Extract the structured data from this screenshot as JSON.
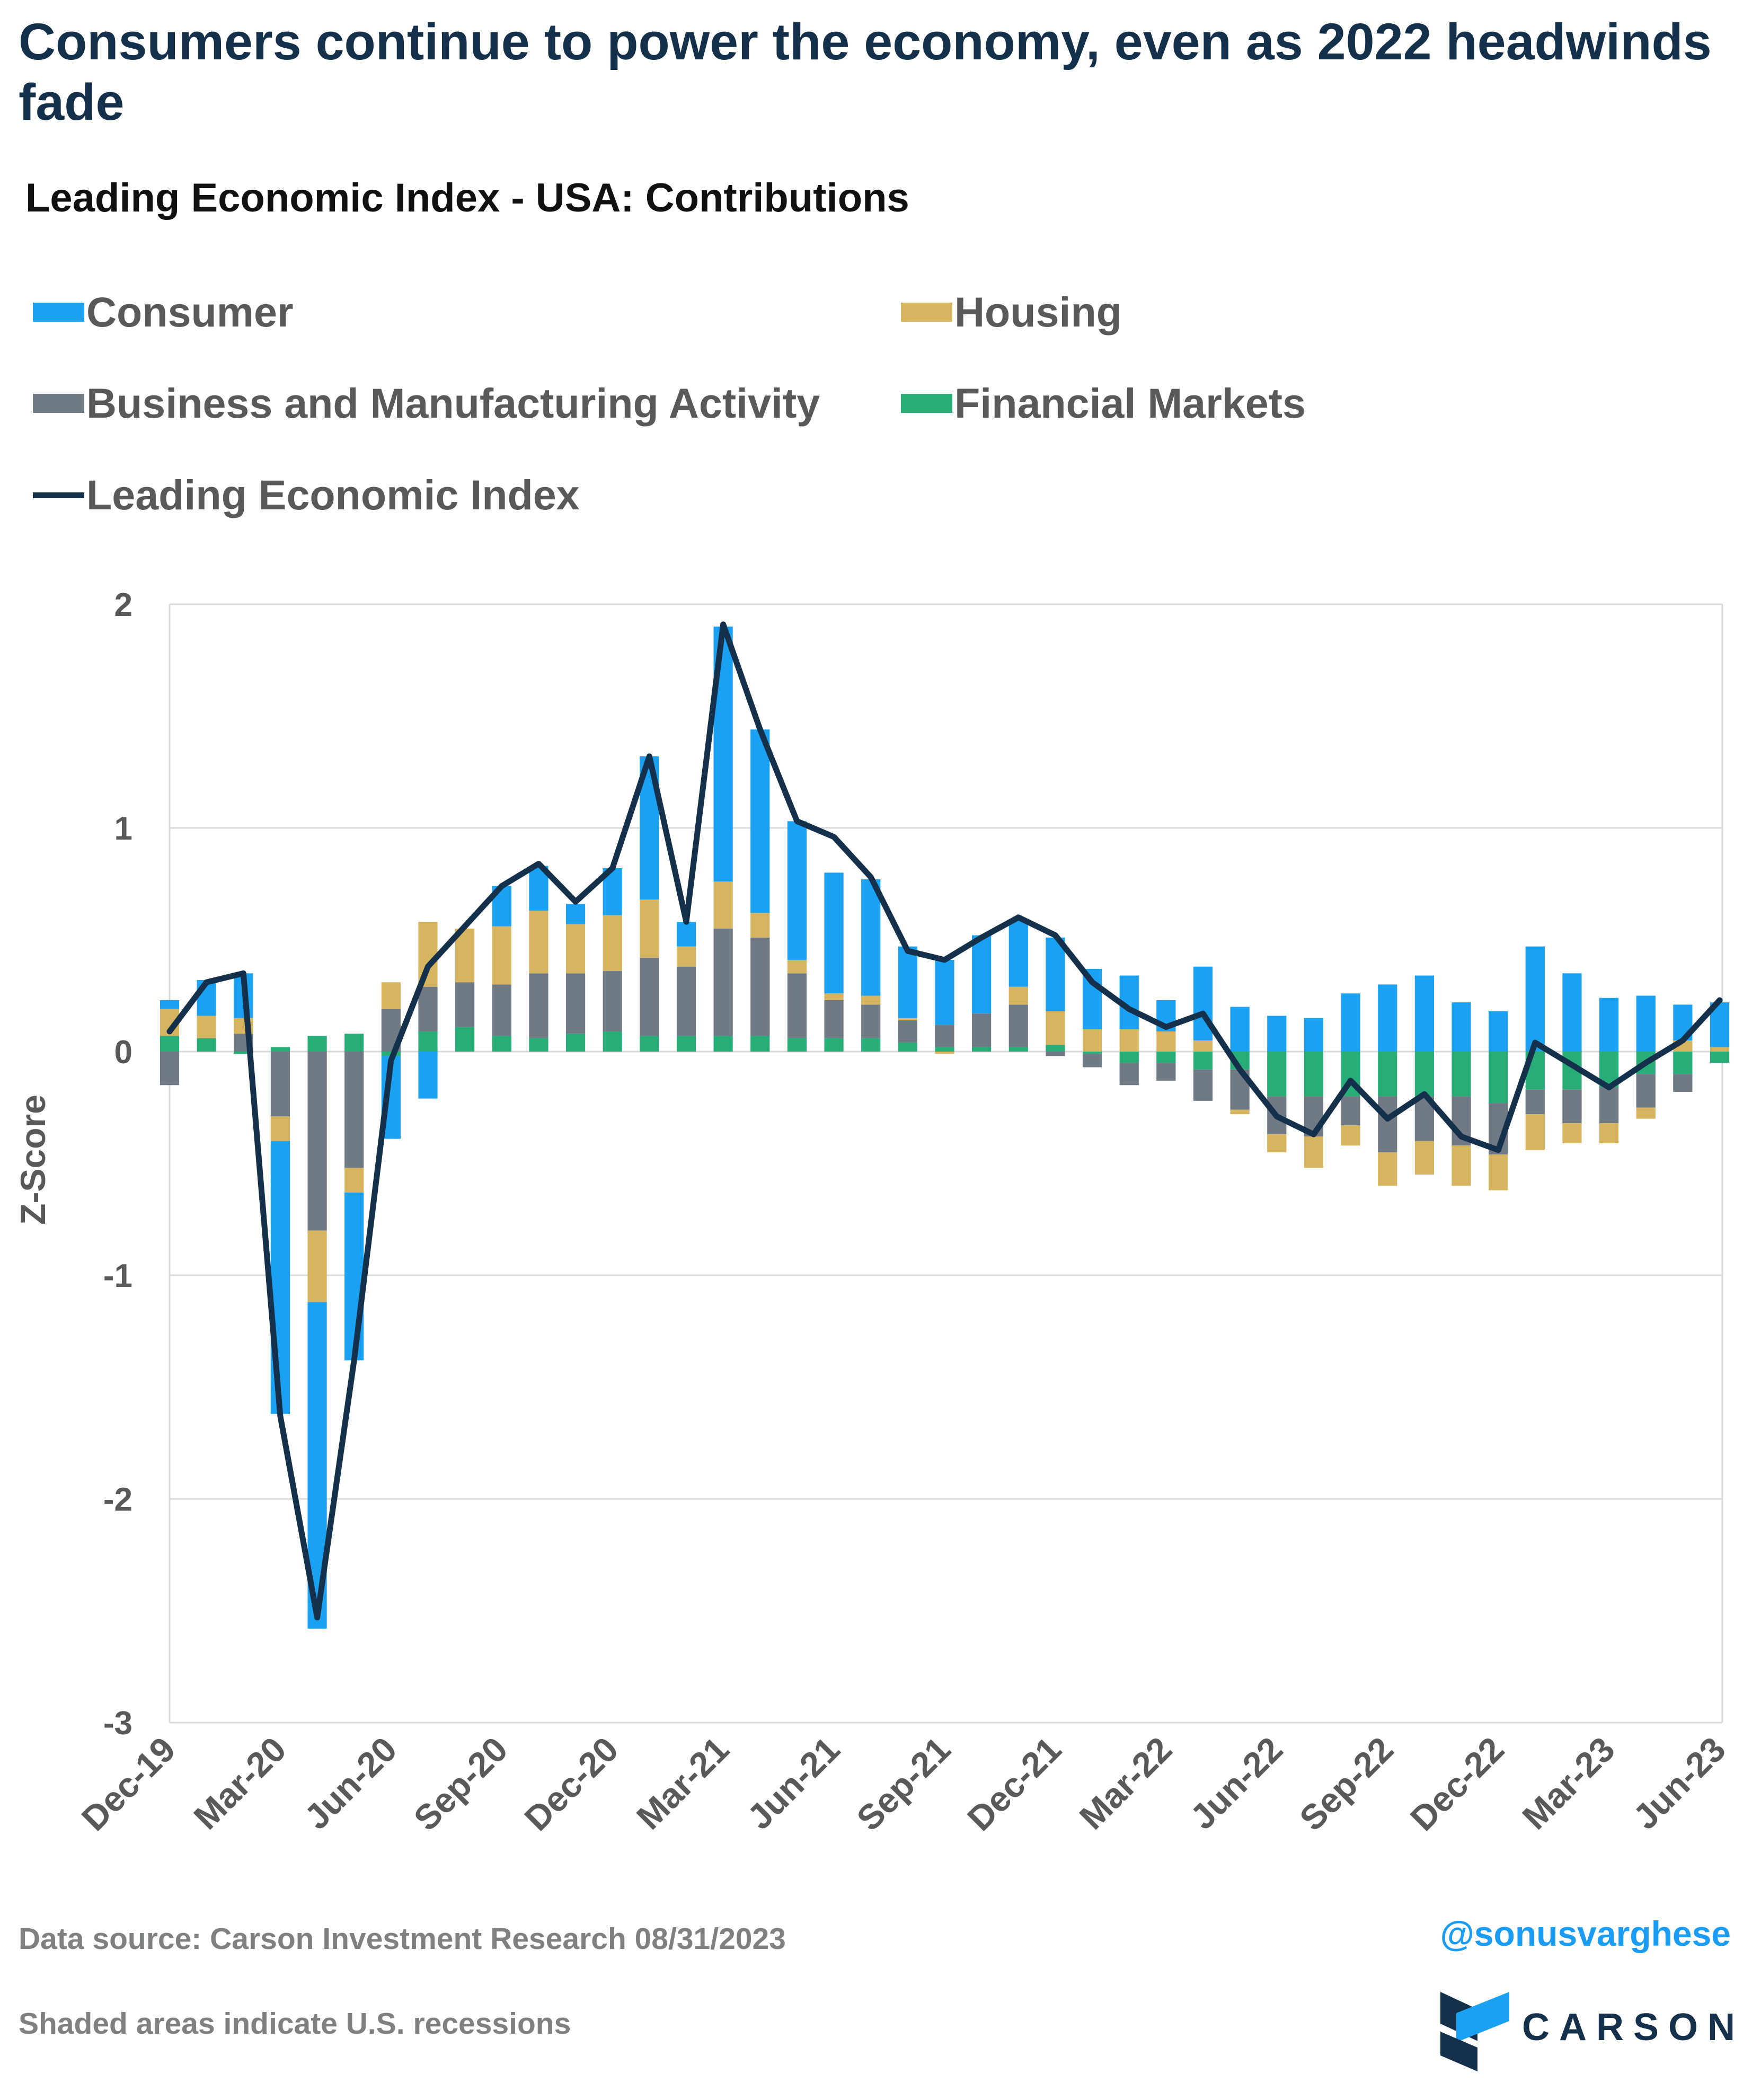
{
  "header": {
    "title": "Consumers continue to power the economy, even as 2022 headwinds fade",
    "subtitle": "Leading Economic Index - USA: Contributions"
  },
  "legend": {
    "consumer": "Consumer",
    "housing": "Housing",
    "business": "Business and Manufacturing Activity",
    "financial": "Financial Markets",
    "lei": "Leading Economic Index"
  },
  "colors": {
    "consumer": "#1ba1f2",
    "housing": "#d7b45f",
    "business": "#6f7a84",
    "financial": "#29ad78",
    "lei": "#14304a",
    "grid": "#d9d9d9",
    "axis_text": "#595959"
  },
  "footer": {
    "source": "Data source: Carson Investment Research   08/31/2023",
    "note": "Shaded areas indicate U.S. recessions",
    "handle": "@sonusvarghese",
    "logo": "CARSON"
  },
  "chart_data": {
    "type": "bar",
    "stacked": true,
    "ylabel": "Z-Score",
    "ylim": [
      -3,
      2
    ],
    "yticks": [
      "2",
      "1",
      "0",
      "-1",
      "-2",
      "-3"
    ],
    "xtick_labels": [
      "Dec-19",
      "Mar-20",
      "Jun-20",
      "Sep-20",
      "Dec-20",
      "Mar-21",
      "Jun-21",
      "Sep-21",
      "Dec-21",
      "Mar-22",
      "Jun-22",
      "Sep-22",
      "Dec-22",
      "Mar-23",
      "Jun-23"
    ],
    "categories": [
      "Dec-19",
      "Jan-20",
      "Feb-20",
      "Mar-20",
      "Apr-20",
      "May-20",
      "Jun-20",
      "Jul-20",
      "Aug-20",
      "Sep-20",
      "Oct-20",
      "Nov-20",
      "Dec-20",
      "Jan-21",
      "Feb-21",
      "Mar-21",
      "Apr-21",
      "May-21",
      "Jun-21",
      "Jul-21",
      "Aug-21",
      "Sep-21",
      "Oct-21",
      "Nov-21",
      "Dec-21",
      "Jan-22",
      "Feb-22",
      "Mar-22",
      "Apr-22",
      "May-22",
      "Jun-22",
      "Jul-22",
      "Aug-22",
      "Sep-22",
      "Oct-22",
      "Nov-22",
      "Dec-22",
      "Jan-23",
      "Feb-23",
      "Mar-23",
      "Apr-23",
      "May-23",
      "Jun-23"
    ],
    "grid": true,
    "series": [
      {
        "name": "Financial Markets",
        "key": "financial",
        "values": [
          0.07,
          0.06,
          -0.01,
          0.02,
          0.07,
          0.08,
          -0.02,
          0.09,
          0.11,
          0.07,
          0.06,
          0.08,
          0.09,
          0.07,
          0.07,
          0.07,
          0.07,
          0.06,
          0.06,
          0.06,
          0.04,
          0.02,
          0.02,
          0.02,
          0.03,
          -0.01,
          -0.05,
          -0.05,
          -0.08,
          -0.08,
          -0.2,
          -0.2,
          -0.2,
          -0.2,
          -0.2,
          -0.2,
          -0.23,
          -0.17,
          -0.17,
          -0.16,
          -0.1,
          -0.1,
          -0.05
        ]
      },
      {
        "name": "Business and Manufacturing Activity",
        "key": "business",
        "values": [
          -0.15,
          0,
          0.08,
          -0.29,
          -0.8,
          -0.52,
          0.19,
          0.2,
          0.2,
          0.23,
          0.29,
          0.27,
          0.27,
          0.35,
          0.31,
          0.48,
          0.44,
          0.29,
          0.17,
          0.15,
          0.1,
          0.1,
          0.15,
          0.19,
          -0.02,
          -0.06,
          -0.1,
          -0.08,
          -0.14,
          -0.18,
          -0.17,
          -0.18,
          -0.13,
          -0.25,
          -0.2,
          -0.22,
          -0.23,
          -0.11,
          -0.15,
          -0.16,
          -0.15,
          -0.08,
          0
        ]
      },
      {
        "name": "Housing",
        "key": "housing",
        "values": [
          0.12,
          0.1,
          0.07,
          -0.11,
          -0.32,
          -0.11,
          0.12,
          0.29,
          0.24,
          0.26,
          0.28,
          0.22,
          0.25,
          0.26,
          0.09,
          0.21,
          0.11,
          0.06,
          0.03,
          0.04,
          0.01,
          -0.01,
          0,
          0.08,
          0.15,
          0.1,
          0.1,
          0.09,
          0.05,
          -0.02,
          -0.08,
          -0.14,
          -0.09,
          -0.15,
          -0.15,
          -0.18,
          -0.16,
          -0.16,
          -0.09,
          -0.09,
          -0.05,
          0.05,
          0.02
        ]
      },
      {
        "name": "Consumer",
        "key": "consumer",
        "values": [
          0.04,
          0.16,
          0.2,
          -1.22,
          -1.46,
          -0.75,
          -0.37,
          -0.21,
          0,
          0.18,
          0.2,
          0.09,
          0.21,
          0.64,
          0.11,
          1.14,
          0.82,
          0.62,
          0.54,
          0.52,
          0.32,
          0.29,
          0.35,
          0.3,
          0.33,
          0.27,
          0.24,
          0.14,
          0.33,
          0.2,
          0.16,
          0.15,
          0.26,
          0.3,
          0.34,
          0.22,
          0.18,
          0.47,
          0.35,
          0.24,
          0.25,
          0.16,
          0.2
        ]
      }
    ],
    "line": {
      "name": "Leading Economic Index",
      "key": "lei",
      "values": [
        0.09,
        0.31,
        0.35,
        -1.63,
        -2.53,
        -1.38,
        -0.04,
        0.38,
        0.56,
        0.74,
        0.84,
        0.67,
        0.82,
        1.32,
        0.58,
        1.91,
        1.44,
        1.03,
        0.96,
        0.78,
        0.45,
        0.41,
        0.51,
        0.6,
        0.52,
        0.31,
        0.19,
        0.11,
        0.17,
        -0.08,
        -0.29,
        -0.37,
        -0.13,
        -0.3,
        -0.19,
        -0.38,
        -0.44,
        0.04,
        -0.06,
        -0.16,
        -0.05,
        0.05,
        0.23
      ]
    }
  }
}
